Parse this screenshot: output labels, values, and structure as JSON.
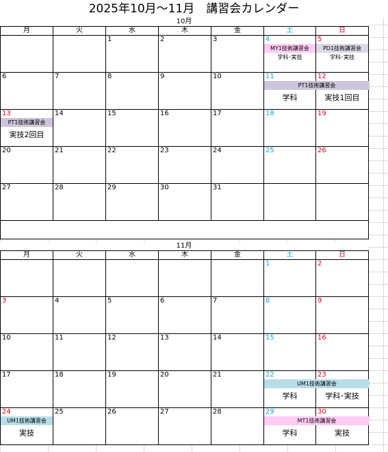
{
  "title": "2025年10月～11月　講習会カレンダー",
  "weekdays": [
    "月",
    "火",
    "水",
    "木",
    "金",
    "土",
    "日"
  ],
  "october": {
    "label": "10月",
    "weeks": [
      [
        "",
        "",
        "1",
        "2",
        "3",
        "4",
        "5"
      ],
      [
        "6",
        "7",
        "8",
        "9",
        "10",
        "11",
        "12"
      ],
      [
        "13",
        "14",
        "15",
        "16",
        "17",
        "18",
        "19"
      ],
      [
        "20",
        "21",
        "22",
        "23",
        "24",
        "25",
        "26"
      ],
      [
        "27",
        "28",
        "29",
        "30",
        "31",
        "",
        ""
      ]
    ],
    "events": {
      "oct4_band": "MY1技術講習会",
      "oct4_sub": "学科･実技",
      "oct5_band": "PD1技術講習会",
      "oct5_sub": "学科･実技",
      "oct11_12_band": "PT1技術講習会",
      "oct11_sub": "学科",
      "oct12_sub": "実技1回目",
      "oct13_band": "PT1技術講習会",
      "oct13_sub": "実技2回目"
    }
  },
  "november": {
    "label": "11月",
    "weeks": [
      [
        "",
        "",
        "",
        "",
        "",
        "1",
        "2"
      ],
      [
        "3",
        "4",
        "5",
        "6",
        "7",
        "8",
        "9"
      ],
      [
        "10",
        "11",
        "12",
        "13",
        "14",
        "15",
        "16"
      ],
      [
        "17",
        "18",
        "19",
        "20",
        "21",
        "22",
        "23"
      ],
      [
        "24",
        "25",
        "26",
        "27",
        "28",
        "29",
        "30"
      ]
    ],
    "events": {
      "nov22_23_band": "UM1技術講習会",
      "nov22_sub": "学科",
      "nov23_sub": "学科･実技",
      "nov24_band": "UM1技術講習会",
      "nov24_sub": "実技",
      "nov29_30_band": "MT1技術講習会",
      "nov29_sub": "学科",
      "nov30_sub": "実技"
    }
  },
  "colors": {
    "saturday": "#1aa3d6",
    "sunday": "#e0001a",
    "pink_event": "#ffccf3",
    "lavender_event": "#cfc4dd",
    "blue_event": "#b9dde8"
  }
}
